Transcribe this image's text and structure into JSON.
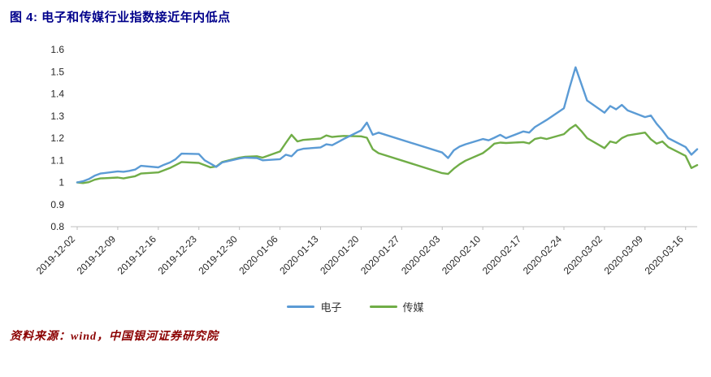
{
  "title": "图 4:  电子和传媒行业指数接近年内低点",
  "source": "资料来源：wind，中国银河证券研究院",
  "colors": {
    "title_text": "#00008B",
    "source_text": "#8B0000",
    "electronics_line": "#5B9BD5",
    "media_line": "#70AD47",
    "axis_line": "#BFBFBF",
    "tick_text": "#262626"
  },
  "chart_data": {
    "type": "line",
    "title": "电子和传媒行业指数接近年内低点",
    "xlabel": "",
    "ylabel": "",
    "ylim": [
      0.8,
      1.6
    ],
    "grid": false,
    "legend_position": "bottom",
    "start_date": "2019-12-02",
    "x_range_days": [
      0,
      107
    ],
    "x_tick_labels": [
      "2019-12-02",
      "2019-12-09",
      "2019-12-16",
      "2019-12-23",
      "2019-12-30",
      "2020-01-06",
      "2020-01-13",
      "2020-01-20",
      "2020-01-27",
      "2020-02-03",
      "2020-02-10",
      "2020-02-17",
      "2020-02-24",
      "2020-03-02",
      "2020-03-09",
      "2020-03-16"
    ],
    "y_ticks": [
      0.8,
      0.9,
      1.0,
      1.1,
      1.2,
      1.3,
      1.4,
      1.5,
      1.6
    ],
    "y_tick_labels": [
      "0.8",
      "0.9",
      "1",
      "1.1",
      "1.2",
      "1.3",
      "1.4",
      "1.5",
      "1.6"
    ],
    "dates": [
      "2019-12-02",
      "2019-12-03",
      "2019-12-04",
      "2019-12-05",
      "2019-12-06",
      "2019-12-09",
      "2019-12-10",
      "2019-12-11",
      "2019-12-12",
      "2019-12-13",
      "2019-12-16",
      "2019-12-17",
      "2019-12-18",
      "2019-12-19",
      "2019-12-20",
      "2019-12-23",
      "2019-12-24",
      "2019-12-25",
      "2019-12-26",
      "2019-12-27",
      "2019-12-30",
      "2019-12-31",
      "2020-01-02",
      "2020-01-03",
      "2020-01-06",
      "2020-01-07",
      "2020-01-08",
      "2020-01-09",
      "2020-01-10",
      "2020-01-13",
      "2020-01-14",
      "2020-01-15",
      "2020-01-16",
      "2020-01-17",
      "2020-01-20",
      "2020-01-21",
      "2020-01-22",
      "2020-01-23",
      "2020-02-03",
      "2020-02-04",
      "2020-02-05",
      "2020-02-06",
      "2020-02-07",
      "2020-02-10",
      "2020-02-11",
      "2020-02-12",
      "2020-02-13",
      "2020-02-14",
      "2020-02-17",
      "2020-02-18",
      "2020-02-19",
      "2020-02-20",
      "2020-02-21",
      "2020-02-24",
      "2020-02-25",
      "2020-02-26",
      "2020-02-27",
      "2020-02-28",
      "2020-03-02",
      "2020-03-03",
      "2020-03-04",
      "2020-03-05",
      "2020-03-06",
      "2020-03-09",
      "2020-03-10",
      "2020-03-11",
      "2020-03-12",
      "2020-03-13",
      "2020-03-16",
      "2020-03-17",
      "2020-03-18"
    ],
    "series": [
      {
        "id": "electronics",
        "name": "电子",
        "color": "#5B9BD5",
        "values": [
          1.0,
          1.005,
          1.015,
          1.03,
          1.04,
          1.05,
          1.048,
          1.052,
          1.058,
          1.075,
          1.068,
          1.08,
          1.09,
          1.105,
          1.13,
          1.128,
          1.1,
          1.085,
          1.07,
          1.09,
          1.108,
          1.112,
          1.11,
          1.1,
          1.105,
          1.125,
          1.118,
          1.145,
          1.152,
          1.158,
          1.172,
          1.168,
          1.182,
          1.196,
          1.235,
          1.27,
          1.215,
          1.225,
          1.135,
          1.11,
          1.145,
          1.162,
          1.172,
          1.196,
          1.19,
          1.202,
          1.215,
          1.2,
          1.23,
          1.225,
          1.25,
          1.266,
          1.282,
          1.335,
          1.43,
          1.52,
          1.445,
          1.37,
          1.315,
          1.345,
          1.33,
          1.35,
          1.325,
          1.295,
          1.302,
          1.265,
          1.235,
          1.2,
          1.16,
          1.125,
          1.15
        ]
      },
      {
        "id": "media",
        "name": "传媒",
        "color": "#70AD47",
        "values": [
          1.0,
          0.997,
          1.001,
          1.012,
          1.018,
          1.022,
          1.018,
          1.023,
          1.028,
          1.04,
          1.045,
          1.055,
          1.065,
          1.078,
          1.092,
          1.088,
          1.078,
          1.068,
          1.072,
          1.092,
          1.112,
          1.116,
          1.118,
          1.112,
          1.14,
          1.178,
          1.215,
          1.185,
          1.192,
          1.198,
          1.212,
          1.205,
          1.208,
          1.21,
          1.208,
          1.202,
          1.15,
          1.132,
          1.042,
          1.038,
          1.062,
          1.082,
          1.098,
          1.132,
          1.152,
          1.175,
          1.18,
          1.178,
          1.182,
          1.176,
          1.196,
          1.202,
          1.196,
          1.218,
          1.242,
          1.26,
          1.232,
          1.2,
          1.155,
          1.185,
          1.178,
          1.2,
          1.212,
          1.225,
          1.195,
          1.175,
          1.185,
          1.16,
          1.12,
          1.065,
          1.078
        ]
      }
    ]
  }
}
